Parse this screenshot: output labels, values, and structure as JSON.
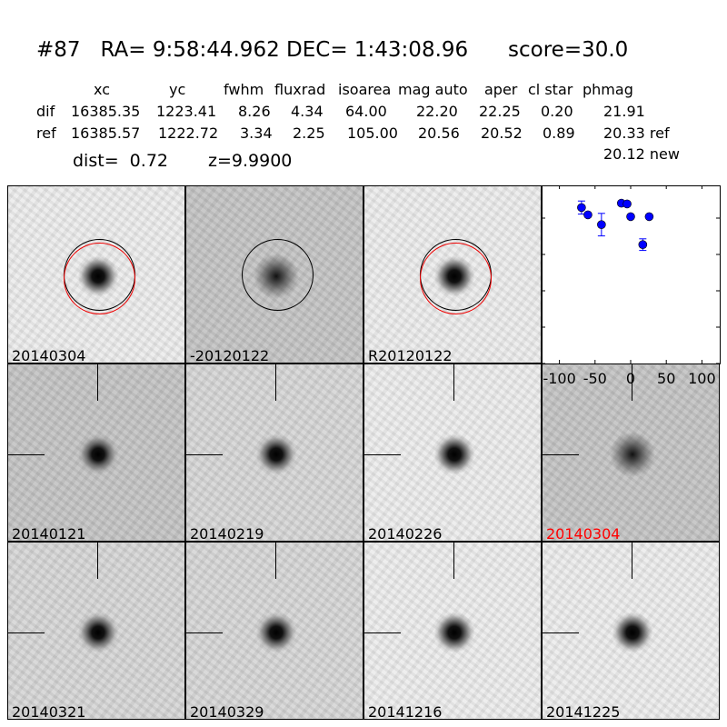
{
  "header": {
    "title": "#87   RA= 9:58:44.962 DEC= 1:43:08.96      score=30.0",
    "columns": [
      "xc",
      "yc",
      "fwhm",
      "fluxrad",
      "isoarea",
      "mag auto",
      "aper",
      "cl star",
      "phmag"
    ],
    "rows": [
      {
        "label": "dif",
        "values": [
          "16385.35",
          "1223.41",
          "8.26",
          "4.34",
          "64.00",
          "22.20",
          "22.25",
          "0.20",
          "21.91"
        ]
      },
      {
        "label": "ref",
        "values": [
          "16385.57",
          "1222.72",
          "3.34",
          "2.25",
          "105.00",
          "20.56",
          "20.52",
          "0.89",
          "20.33 ref"
        ]
      }
    ],
    "new_phmag": "20.12 new",
    "dist": "dist=  0.72",
    "z": "z=9.9900"
  },
  "panels": [
    {
      "label": "20140304",
      "label_color": "#000000",
      "kind": "circled",
      "tone": "light"
    },
    {
      "label": "-20120122",
      "label_color": "#000000",
      "kind": "circled-diff",
      "tone": "dark"
    },
    {
      "label": "R20120122",
      "label_color": "#000000",
      "kind": "circled",
      "tone": "light"
    },
    {
      "label": "20140121",
      "label_color": "#000000",
      "kind": "cross",
      "tone": "dark"
    },
    {
      "label": "20140219",
      "label_color": "#000000",
      "kind": "cross",
      "tone": "mid"
    },
    {
      "label": "20140226",
      "label_color": "#000000",
      "kind": "cross",
      "tone": "light"
    },
    {
      "label": "20140304",
      "label_color": "#ff0000",
      "kind": "cross-diff",
      "tone": "dark"
    },
    {
      "label": "20140321",
      "label_color": "#000000",
      "kind": "cross",
      "tone": "mid"
    },
    {
      "label": "20140329",
      "label_color": "#000000",
      "kind": "cross",
      "tone": "mid"
    },
    {
      "label": "20141216",
      "label_color": "#000000",
      "kind": "cross",
      "tone": "light"
    },
    {
      "label": "20141225",
      "label_color": "#000000",
      "kind": "cross",
      "tone": "light"
    }
  ],
  "chart_data": {
    "type": "scatter",
    "title": "",
    "xlabel": "",
    "ylabel": "",
    "xlim": [
      -125,
      125
    ],
    "ylim": [
      26,
      21.1
    ],
    "y_inverted": true,
    "xticks": [
      "-100",
      "-50",
      "0",
      "50",
      "100"
    ],
    "yticks": [
      "22",
      "23",
      "24",
      "25",
      "26"
    ],
    "marker_color": "#0000ff",
    "points": [
      {
        "x": -69,
        "y": 21.71,
        "err": 0.18
      },
      {
        "x": -60,
        "y": 21.91,
        "err": 0.04
      },
      {
        "x": -41,
        "y": 22.18,
        "err": 0.31
      },
      {
        "x": -13,
        "y": 21.59,
        "err": 0.06
      },
      {
        "x": -5,
        "y": 21.61,
        "err": 0.04
      },
      {
        "x": 0,
        "y": 21.96,
        "err": 0.04
      },
      {
        "x": 17,
        "y": 22.73,
        "err": 0.16
      },
      {
        "x": 26,
        "y": 21.96,
        "err": 0.03
      }
    ]
  }
}
